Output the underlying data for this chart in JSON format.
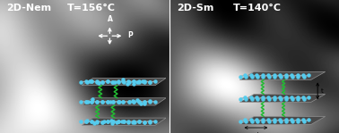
{
  "fig_width": 3.78,
  "fig_height": 1.49,
  "dpi": 100,
  "bg_color": "#111111",
  "left_label": "2D-Nem",
  "left_temp": "T=156°C",
  "right_label": "2D-Sm",
  "right_temp": "T=140°C",
  "label_color": "#ffffff",
  "label_fontsize": 8.0,
  "molecule_color": "#55ccee",
  "chain_color": "#22bb33",
  "layer_dark": "#505050",
  "layer_edge": "#888888",
  "inset_bg": "#d8eef5",
  "arrow_color": "#ffffff"
}
